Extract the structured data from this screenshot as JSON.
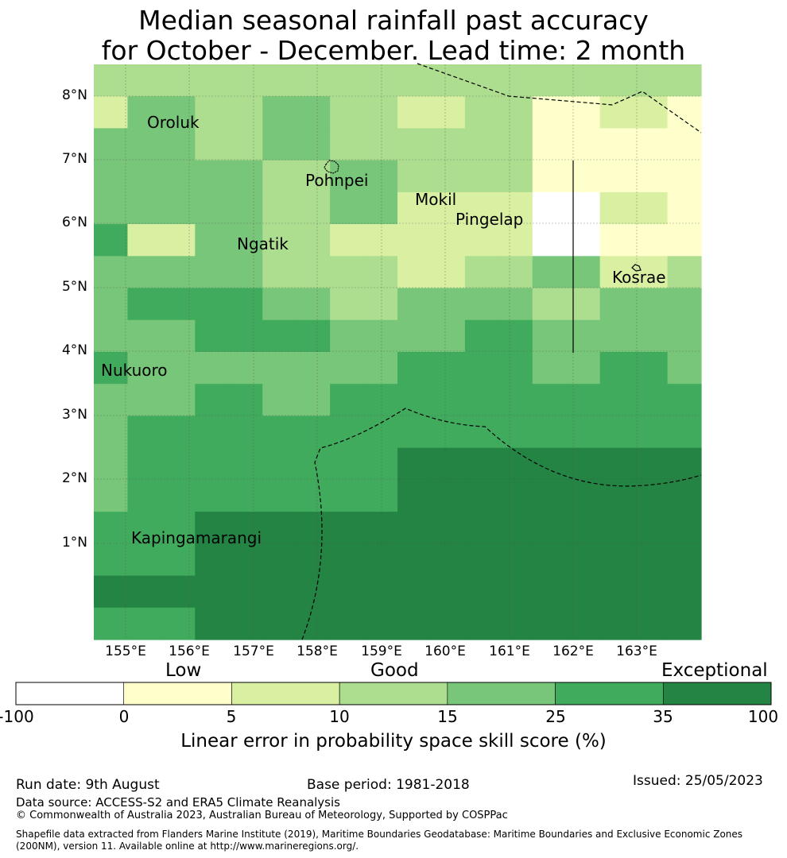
{
  "title": {
    "line1": "Median seasonal rainfall past accuracy",
    "line2": "for October - December. Lead time: 2 month"
  },
  "map": {
    "lat_labels": [
      "8°N",
      "7°N",
      "6°N",
      "5°N",
      "4°N",
      "3°N",
      "2°N",
      "1°N"
    ],
    "lon_labels": [
      "155°E",
      "156°E",
      "157°E",
      "158°E",
      "159°E",
      "160°E",
      "161°E",
      "162°E",
      "163°E"
    ],
    "places": [
      "Oroluk",
      "Pohnpei",
      "Mokil",
      "Pingelap",
      "Ngatik",
      "Kosrae",
      "Nukuoro",
      "Kapingamarangi"
    ],
    "colors": [
      "#ffffff",
      "#ffffcc",
      "#d9f0a3",
      "#addd8e",
      "#78c679",
      "#41ab5d",
      "#238443"
    ],
    "grid_levels": [
      [
        3,
        3,
        3,
        3,
        3,
        3,
        3,
        3,
        3,
        3,
        3,
        3,
        3,
        3,
        3,
        3,
        3,
        3
      ],
      [
        2,
        4,
        4,
        3,
        3,
        4,
        4,
        3,
        3,
        2,
        2,
        3,
        3,
        1,
        1,
        2,
        2,
        1
      ],
      [
        4,
        4,
        4,
        3,
        3,
        4,
        4,
        3,
        3,
        3,
        3,
        3,
        3,
        1,
        1,
        1,
        1,
        1
      ],
      [
        4,
        4,
        4,
        4,
        4,
        3,
        3,
        4,
        4,
        3,
        3,
        3,
        3,
        1,
        1,
        1,
        1,
        1
      ],
      [
        4,
        4,
        4,
        4,
        4,
        3,
        3,
        4,
        4,
        2,
        2,
        2,
        2,
        0,
        0,
        2,
        2,
        1
      ],
      [
        5,
        2,
        2,
        4,
        4,
        3,
        3,
        2,
        2,
        2,
        2,
        2,
        2,
        0,
        0,
        1,
        1,
        1
      ],
      [
        4,
        4,
        4,
        4,
        4,
        3,
        3,
        3,
        3,
        2,
        2,
        3,
        3,
        4,
        4,
        2,
        2,
        3
      ],
      [
        4,
        5,
        5,
        5,
        5,
        4,
        4,
        3,
        3,
        4,
        4,
        4,
        4,
        3,
        3,
        4,
        4,
        4
      ],
      [
        4,
        4,
        4,
        5,
        5,
        5,
        5,
        4,
        4,
        4,
        4,
        5,
        5,
        4,
        4,
        4,
        4,
        4
      ],
      [
        5,
        4,
        4,
        4,
        4,
        4,
        4,
        4,
        4,
        5,
        5,
        5,
        5,
        4,
        4,
        5,
        5,
        4
      ],
      [
        4,
        4,
        4,
        5,
        5,
        4,
        4,
        5,
        5,
        5,
        5,
        5,
        5,
        5,
        5,
        5,
        5,
        5
      ],
      [
        4,
        5,
        5,
        5,
        5,
        5,
        5,
        5,
        5,
        5,
        5,
        5,
        5,
        5,
        5,
        5,
        5,
        5
      ],
      [
        4,
        5,
        5,
        5,
        5,
        5,
        5,
        5,
        5,
        6,
        6,
        6,
        6,
        6,
        6,
        6,
        6,
        6
      ],
      [
        4,
        5,
        5,
        5,
        5,
        5,
        5,
        5,
        5,
        6,
        6,
        6,
        6,
        6,
        6,
        6,
        6,
        6
      ],
      [
        5,
        5,
        5,
        6,
        6,
        6,
        6,
        6,
        6,
        6,
        6,
        6,
        6,
        6,
        6,
        6,
        6,
        6
      ],
      [
        5,
        5,
        5,
        6,
        6,
        6,
        6,
        6,
        6,
        6,
        6,
        6,
        6,
        6,
        6,
        6,
        6,
        6
      ],
      [
        6,
        6,
        6,
        6,
        6,
        6,
        6,
        6,
        6,
        6,
        6,
        6,
        6,
        6,
        6,
        6,
        6,
        6
      ],
      [
        5,
        5,
        5,
        6,
        6,
        6,
        6,
        6,
        6,
        6,
        6,
        6,
        6,
        6,
        6,
        6,
        6,
        6
      ]
    ]
  },
  "legend": {
    "low": "Low",
    "good": "Good",
    "exceptional": "Exceptional",
    "ticks": [
      "-100",
      "0",
      "5",
      "10",
      "15",
      "25",
      "35",
      "100"
    ],
    "title": "Linear error in probability space skill score (%)",
    "colors": [
      "#ffffff",
      "#ffffcc",
      "#d9f0a3",
      "#addd8e",
      "#78c679",
      "#41ab5d",
      "#238443"
    ]
  },
  "footer": {
    "run_date": "Run date: 9th August",
    "base_period": "Base period: 1981-2018",
    "issued": "Issued: 25/05/2023",
    "data_source": "Data source: ACCESS-S2 and ERA5 Climate Reanalysis",
    "copyright": "© Commonwealth of Australia 2023, Australian Bureau of Meteorology, Supported by COSPPac",
    "shapefile": "Shapefile data extracted from Flanders Marine Institute (2019), Maritime Boundaries Geodatabase: Maritime Boundaries and Exclusive Economic Zones (200NM), version 11. Available online at http://www.marineregions.org/."
  }
}
